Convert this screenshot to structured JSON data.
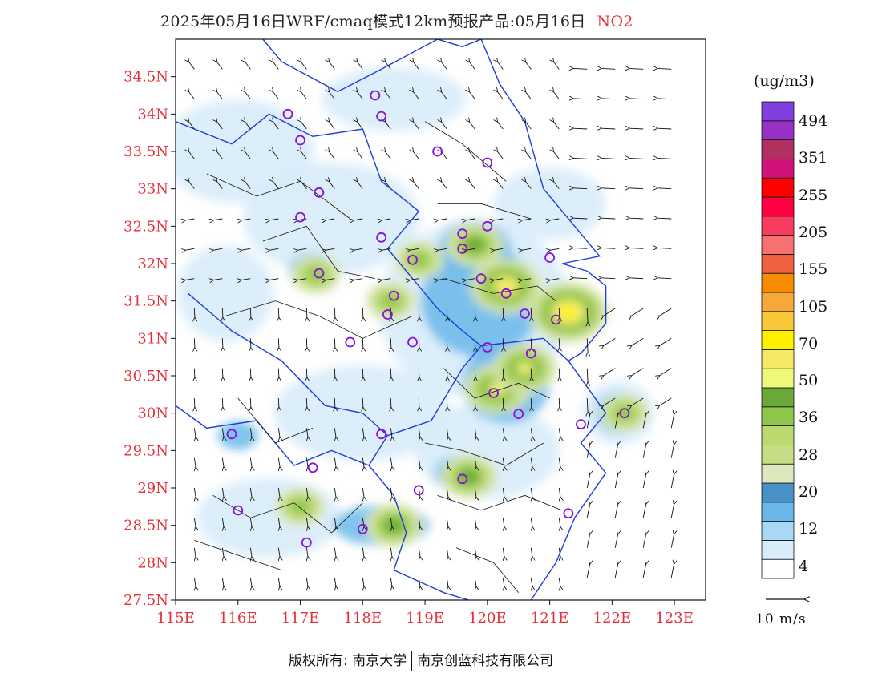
{
  "title": {
    "main": "2025年05月16日WRF/cmaq模式12km预报产品:05月16日",
    "species": "NO2"
  },
  "axes": {
    "lat_labels": [
      "34.5N",
      "34N",
      "33.5N",
      "33N",
      "32.5N",
      "32N",
      "31.5N",
      "31N",
      "30.5N",
      "30N",
      "29.5N",
      "29N",
      "28.5N",
      "28N",
      "27.5N"
    ],
    "lon_labels": [
      "115E",
      "116E",
      "117E",
      "118E",
      "119E",
      "120E",
      "121E",
      "122E",
      "123E"
    ],
    "lat_range": [
      27.5,
      35.0
    ],
    "lon_range": [
      115.0,
      123.5
    ]
  },
  "colorbar": {
    "unit": "(ug/m3)",
    "labels": [
      "494",
      "351",
      "255",
      "205",
      "155",
      "105",
      "70",
      "50",
      "36",
      "28",
      "20",
      "12",
      "4"
    ],
    "colors_bottom_to_top": [
      "#ffffff",
      "#d8ecfa",
      "#a8d8f5",
      "#6ab8ea",
      "#4a90c8",
      "#dde8bc",
      "#c6dd86",
      "#bcd870",
      "#8dc64a",
      "#6aa838",
      "#f0f87a",
      "#f5e866",
      "#fff000",
      "#f8c838",
      "#f8a838",
      "#f88c00",
      "#f06040",
      "#f87070",
      "#f83c60",
      "#ff0040",
      "#ff0000",
      "#d0127a",
      "#b03060",
      "#9830c8",
      "#8040e0"
    ]
  },
  "wind_reference": {
    "label": "10 m/s"
  },
  "footer": {
    "left": "版权所有: 南京大学",
    "right": "南京创蓝科技有限公司"
  },
  "markers_lonlat": [
    [
      118.2,
      34.25
    ],
    [
      116.8,
      34.0
    ],
    [
      118.3,
      33.97
    ],
    [
      117.0,
      33.65
    ],
    [
      119.2,
      33.5
    ],
    [
      120.0,
      33.35
    ],
    [
      117.3,
      32.95
    ],
    [
      117.0,
      32.62
    ],
    [
      118.3,
      32.35
    ],
    [
      119.6,
      32.4
    ],
    [
      120.0,
      32.5
    ],
    [
      119.6,
      32.2
    ],
    [
      118.8,
      32.05
    ],
    [
      121.0,
      32.08
    ],
    [
      117.3,
      31.87
    ],
    [
      119.9,
      31.8
    ],
    [
      120.3,
      31.6
    ],
    [
      118.5,
      31.57
    ],
    [
      118.4,
      31.32
    ],
    [
      120.6,
      31.33
    ],
    [
      121.1,
      31.25
    ],
    [
      117.8,
      30.95
    ],
    [
      118.8,
      30.95
    ],
    [
      120.0,
      30.88
    ],
    [
      120.7,
      30.8
    ],
    [
      120.1,
      30.27
    ],
    [
      120.5,
      29.99
    ],
    [
      121.5,
      29.85
    ],
    [
      122.2,
      30.0
    ],
    [
      115.9,
      29.72
    ],
    [
      118.3,
      29.72
    ],
    [
      117.2,
      29.27
    ],
    [
      119.6,
      29.12
    ],
    [
      118.9,
      28.97
    ],
    [
      116.0,
      28.7
    ],
    [
      121.3,
      28.66
    ],
    [
      118.0,
      28.45
    ],
    [
      117.1,
      28.27
    ]
  ],
  "hotspots": [
    {
      "lon": 120.3,
      "lat": 31.7,
      "level": 7
    },
    {
      "lon": 121.3,
      "lat": 31.35,
      "level": 8
    },
    {
      "lon": 120.15,
      "lat": 30.32,
      "level": 6
    },
    {
      "lon": 119.8,
      "lat": 32.25,
      "level": 5
    },
    {
      "lon": 120.6,
      "lat": 30.6,
      "level": 6
    },
    {
      "lon": 119.7,
      "lat": 29.15,
      "level": 5
    },
    {
      "lon": 118.9,
      "lat": 32.05,
      "level": 4
    },
    {
      "lon": 117.25,
      "lat": 31.85,
      "level": 4
    },
    {
      "lon": 118.5,
      "lat": 28.5,
      "level": 5
    },
    {
      "lon": 117.0,
      "lat": 28.75,
      "level": 4
    },
    {
      "lon": 122.2,
      "lat": 30.0,
      "level": 4
    },
    {
      "lon": 118.45,
      "lat": 31.5,
      "level": 4
    }
  ]
}
